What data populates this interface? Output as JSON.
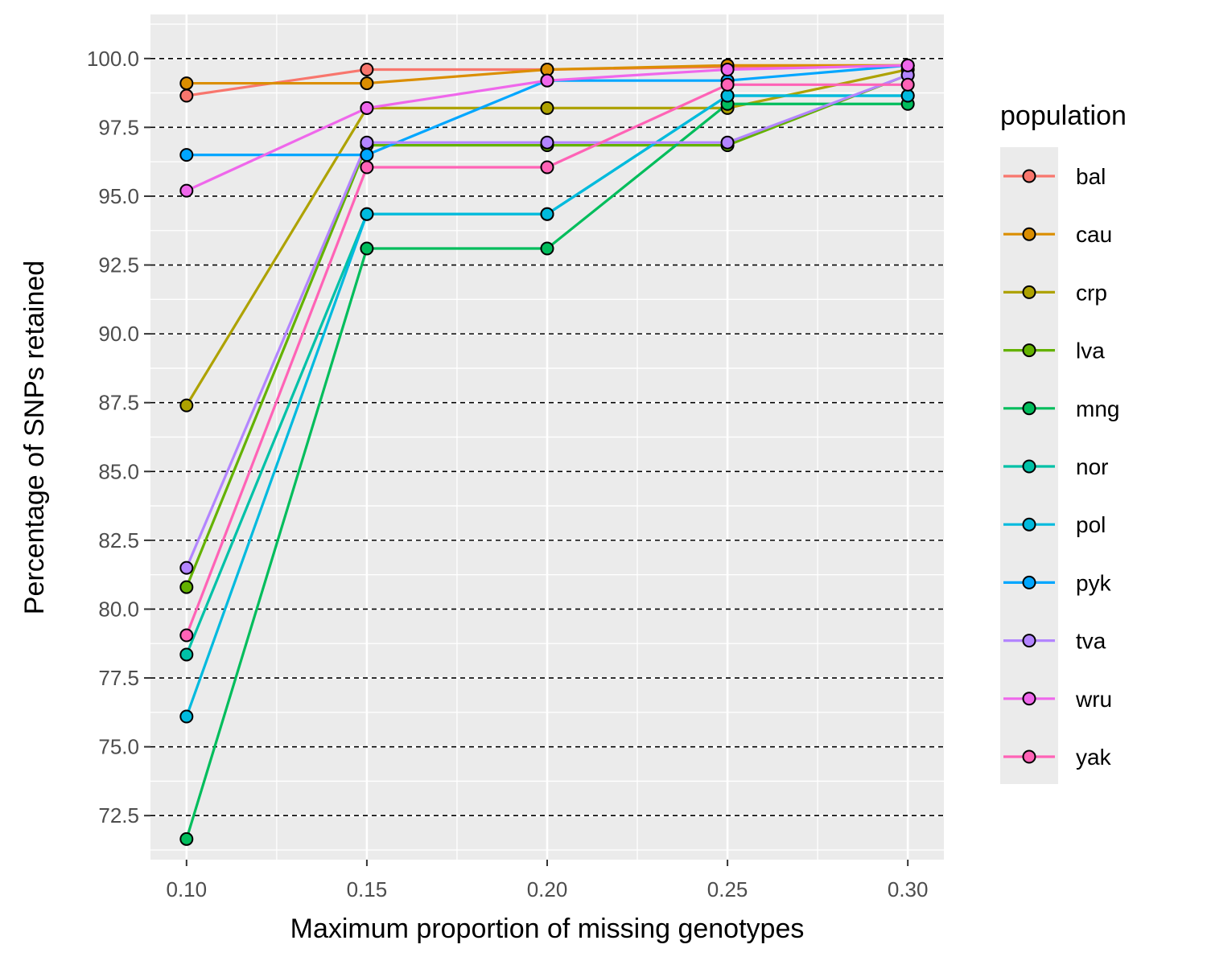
{
  "chart_data": {
    "type": "line",
    "xlabel": "Maximum proportion of missing genotypes",
    "ylabel": "Percentage of SNPs retained",
    "x": [
      0.1,
      0.15,
      0.2,
      0.25,
      0.3
    ],
    "x_tick_labels": [
      "0.10",
      "0.15",
      "0.20",
      "0.25",
      "0.30"
    ],
    "xlim": [
      0.09,
      0.31
    ],
    "y_ticks": [
      72.5,
      75.0,
      77.5,
      80.0,
      82.5,
      85.0,
      87.5,
      90.0,
      92.5,
      95.0,
      97.5,
      100.0
    ],
    "y_tick_labels": [
      "72.5",
      "75.0",
      "77.5",
      "80.0",
      "82.5",
      "85.0",
      "87.5",
      "90.0",
      "92.5",
      "95.0",
      "97.5",
      "100.0"
    ],
    "ylim": [
      70.9,
      101.6
    ],
    "dashed_gridlines": true,
    "legend_title": "population",
    "legend_position": "right",
    "series": [
      {
        "name": "bal",
        "color": "#F8766D",
        "values": [
          98.65,
          99.6,
          99.6,
          99.7,
          99.75
        ]
      },
      {
        "name": "cau",
        "color": "#DB8E00",
        "values": [
          99.1,
          99.1,
          99.6,
          99.75,
          99.75
        ]
      },
      {
        "name": "crp",
        "color": "#AEA200",
        "values": [
          87.4,
          98.2,
          98.2,
          98.2,
          99.6
        ]
      },
      {
        "name": "lva",
        "color": "#64B200",
        "values": [
          80.8,
          96.85,
          96.85,
          96.85,
          99.4
        ]
      },
      {
        "name": "mng",
        "color": "#00BD5C",
        "values": [
          71.65,
          93.1,
          93.1,
          98.35,
          98.35
        ]
      },
      {
        "name": "nor",
        "color": "#00C1A7",
        "values": [
          78.35,
          94.35,
          94.35,
          98.65,
          98.65
        ]
      },
      {
        "name": "pol",
        "color": "#00BADE",
        "values": [
          76.1,
          94.35,
          94.35,
          98.65,
          98.65
        ]
      },
      {
        "name": "pyk",
        "color": "#00A6FF",
        "values": [
          96.5,
          96.5,
          99.2,
          99.2,
          99.75
        ]
      },
      {
        "name": "tva",
        "color": "#B385FF",
        "values": [
          81.5,
          96.95,
          96.95,
          96.95,
          99.4
        ]
      },
      {
        "name": "wru",
        "color": "#EF67EB",
        "values": [
          95.2,
          98.2,
          99.2,
          99.6,
          99.75
        ]
      },
      {
        "name": "yak",
        "color": "#FF63B6",
        "values": [
          79.05,
          96.05,
          96.05,
          99.05,
          99.05
        ]
      }
    ]
  }
}
